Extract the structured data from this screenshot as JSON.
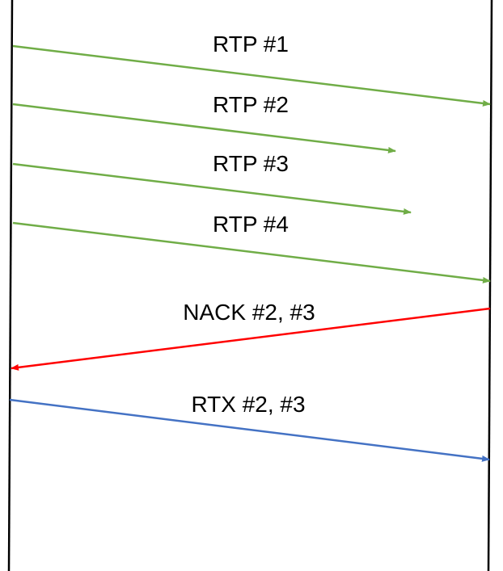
{
  "colors": {
    "lifeline": "#000000",
    "rtp": "#70ad47",
    "nack": "#ff0000",
    "rtx": "#4472c4"
  },
  "messages": [
    {
      "label": "RTP #1",
      "kind": "rtp",
      "direction": "left-to-right",
      "delivered": true
    },
    {
      "label": "RTP #2",
      "kind": "rtp",
      "direction": "left-to-right",
      "delivered": false
    },
    {
      "label": "RTP #3",
      "kind": "rtp",
      "direction": "left-to-right",
      "delivered": false
    },
    {
      "label": "RTP #4",
      "kind": "rtp",
      "direction": "left-to-right",
      "delivered": true
    },
    {
      "label": "NACK #2, #3",
      "kind": "nack",
      "direction": "right-to-left",
      "delivered": true
    },
    {
      "label": "RTX #2, #3",
      "kind": "rtx",
      "direction": "left-to-right",
      "delivered": true
    }
  ]
}
